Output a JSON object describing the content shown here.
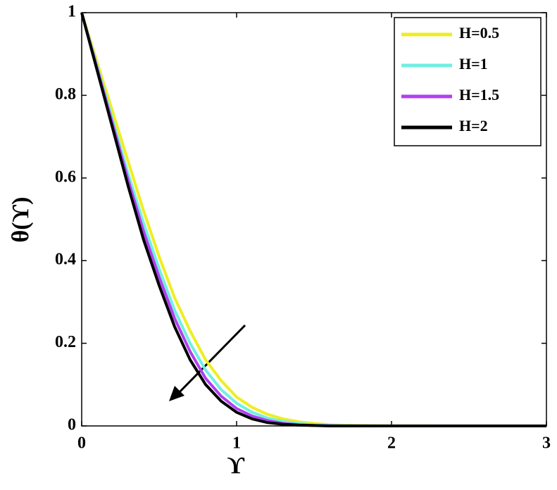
{
  "chart_data": {
    "type": "line",
    "x_label": "ϒ",
    "y_label": "θ(ϒ)",
    "x": [
      0,
      0.1,
      0.2,
      0.3,
      0.4,
      0.5,
      0.6,
      0.7,
      0.8,
      0.9,
      1.0,
      1.1,
      1.2,
      1.3,
      1.4,
      1.5,
      1.6,
      1.7,
      1.8,
      1.9,
      2.0,
      2.5,
      3.0
    ],
    "series": [
      {
        "name": "H=0.5",
        "color": "#eeee22",
        "values": [
          1,
          0.88,
          0.76,
          0.64,
          0.52,
          0.41,
          0.31,
          0.23,
          0.16,
          0.11,
          0.07,
          0.045,
          0.028,
          0.017,
          0.01,
          0.006,
          0.003,
          0.002,
          0.001,
          0.0005,
          0.0002,
          0,
          0
        ]
      },
      {
        "name": "H=1",
        "color": "#70f0e0",
        "values": [
          1,
          0.87,
          0.74,
          0.61,
          0.49,
          0.38,
          0.28,
          0.2,
          0.135,
          0.088,
          0.055,
          0.033,
          0.019,
          0.011,
          0.006,
          0.003,
          0.0015,
          0.0007,
          0.0003,
          0.0001,
          0,
          0,
          0
        ]
      },
      {
        "name": "H=1.5",
        "color": "#b040f0",
        "values": [
          1,
          0.865,
          0.73,
          0.595,
          0.47,
          0.36,
          0.26,
          0.18,
          0.115,
          0.072,
          0.042,
          0.024,
          0.013,
          0.006,
          0.003,
          0.001,
          0.0005,
          0,
          0,
          0,
          0,
          0,
          0
        ]
      },
      {
        "name": "H=2",
        "color": "#000000",
        "values": [
          1,
          0.86,
          0.72,
          0.58,
          0.45,
          0.34,
          0.24,
          0.16,
          0.1,
          0.06,
          0.033,
          0.017,
          0.008,
          0.004,
          0.002,
          0.001,
          0,
          0,
          0,
          0,
          0,
          0,
          0
        ]
      }
    ],
    "xlim": [
      0,
      3
    ],
    "xticks": [
      0,
      1,
      2,
      3
    ],
    "ylim": [
      0,
      1
    ],
    "yticks": [
      0,
      0.2,
      0.4,
      0.6,
      0.8,
      1
    ],
    "legend": "upper right",
    "grid": false
  }
}
